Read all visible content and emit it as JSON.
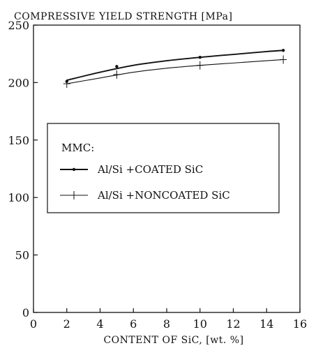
{
  "chart_data": {
    "type": "line",
    "title": "COMPRESSIVE YIELD STRENGTH [MPa]",
    "xlabel": "CONTENT OF SiC, [wt. %]",
    "ylabel": "",
    "xlim": [
      0,
      16
    ],
    "ylim": [
      0,
      250
    ],
    "xticks": [
      0,
      2,
      4,
      6,
      8,
      10,
      12,
      14,
      16
    ],
    "yticks": [
      0,
      50,
      100,
      150,
      200,
      250
    ],
    "grid": false,
    "legend": {
      "title": "MMC:",
      "placement": "center"
    },
    "series": [
      {
        "name": "Al/Si +COATED SiC",
        "marker": "dot",
        "x": [
          2,
          5,
          10,
          15
        ],
        "y": [
          201,
          214,
          222,
          228
        ],
        "curve_x": [
          2,
          4,
          6,
          8,
          10,
          12,
          14,
          15
        ],
        "curve_y": [
          202,
          209,
          215,
          219,
          222,
          224.5,
          227,
          228
        ]
      },
      {
        "name": "Al/Si +NONCOATED SiC",
        "marker": "plus",
        "x": [
          2,
          5,
          10,
          15
        ],
        "y": [
          199,
          207,
          215,
          220
        ],
        "curve_x": [
          2,
          4,
          6,
          8,
          10,
          12,
          14,
          15
        ],
        "curve_y": [
          199,
          204,
          209,
          212.5,
          215,
          217,
          219,
          220
        ]
      }
    ]
  }
}
